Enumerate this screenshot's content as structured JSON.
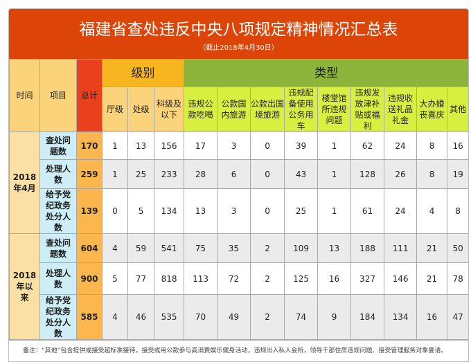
{
  "title": "福建省查处违反中央八项规定精神情况汇总表",
  "subtitle": "（截止2018年4月30日）",
  "headers": {
    "time": "时间",
    "item": "项目",
    "total": "总计",
    "level_group": "级别",
    "type_group": "类型",
    "levels": [
      "厅级",
      "处级",
      "科级及以下"
    ],
    "types": [
      "违规公款吃喝",
      "公款国内旅游",
      "公款出国境旅游",
      "违规配备使用公务用车",
      "楼堂馆所违规问题",
      "违规发放津补贴或福利",
      "违规收送礼品礼金",
      "大办婚丧喜庆",
      "其他"
    ]
  },
  "groups": [
    {
      "time": "2018年4月",
      "rows": [
        {
          "item": "查处问题数",
          "total": "170",
          "values": [
            "1",
            "13",
            "156",
            "17",
            "3",
            "0",
            "39",
            "1",
            "62",
            "24",
            "8",
            "16"
          ]
        },
        {
          "item": "处理人数",
          "total": "259",
          "values": [
            "1",
            "25",
            "233",
            "28",
            "6",
            "0",
            "43",
            "1",
            "128",
            "26",
            "8",
            "19"
          ]
        },
        {
          "item": "给予党纪政务处分人数",
          "total": "139",
          "values": [
            "0",
            "5",
            "134",
            "13",
            "3",
            "0",
            "25",
            "1",
            "61",
            "24",
            "4",
            "8"
          ]
        }
      ]
    },
    {
      "time": "2018年以来",
      "rows": [
        {
          "item": "查处问题数",
          "total": "604",
          "values": [
            "4",
            "59",
            "541",
            "75",
            "35",
            "2",
            "109",
            "13",
            "188",
            "111",
            "21",
            "50"
          ]
        },
        {
          "item": "处理人数",
          "total": "900",
          "values": [
            "5",
            "77",
            "818",
            "113",
            "72",
            "2",
            "125",
            "16",
            "327",
            "146",
            "21",
            "78"
          ]
        },
        {
          "item": "给予党纪政务处分人数",
          "total": "585",
          "values": [
            "4",
            "46",
            "535",
            "70",
            "49",
            "2",
            "74",
            "9",
            "184",
            "134",
            "16",
            "47"
          ]
        }
      ]
    }
  ],
  "note": "备注：“其他”包含提供或接受超标准接待，接受或用公款参与高消费娱乐健身活动，违规出入私人会所，领导干部住房违规问题、接受管理服务对象宴请。"
}
